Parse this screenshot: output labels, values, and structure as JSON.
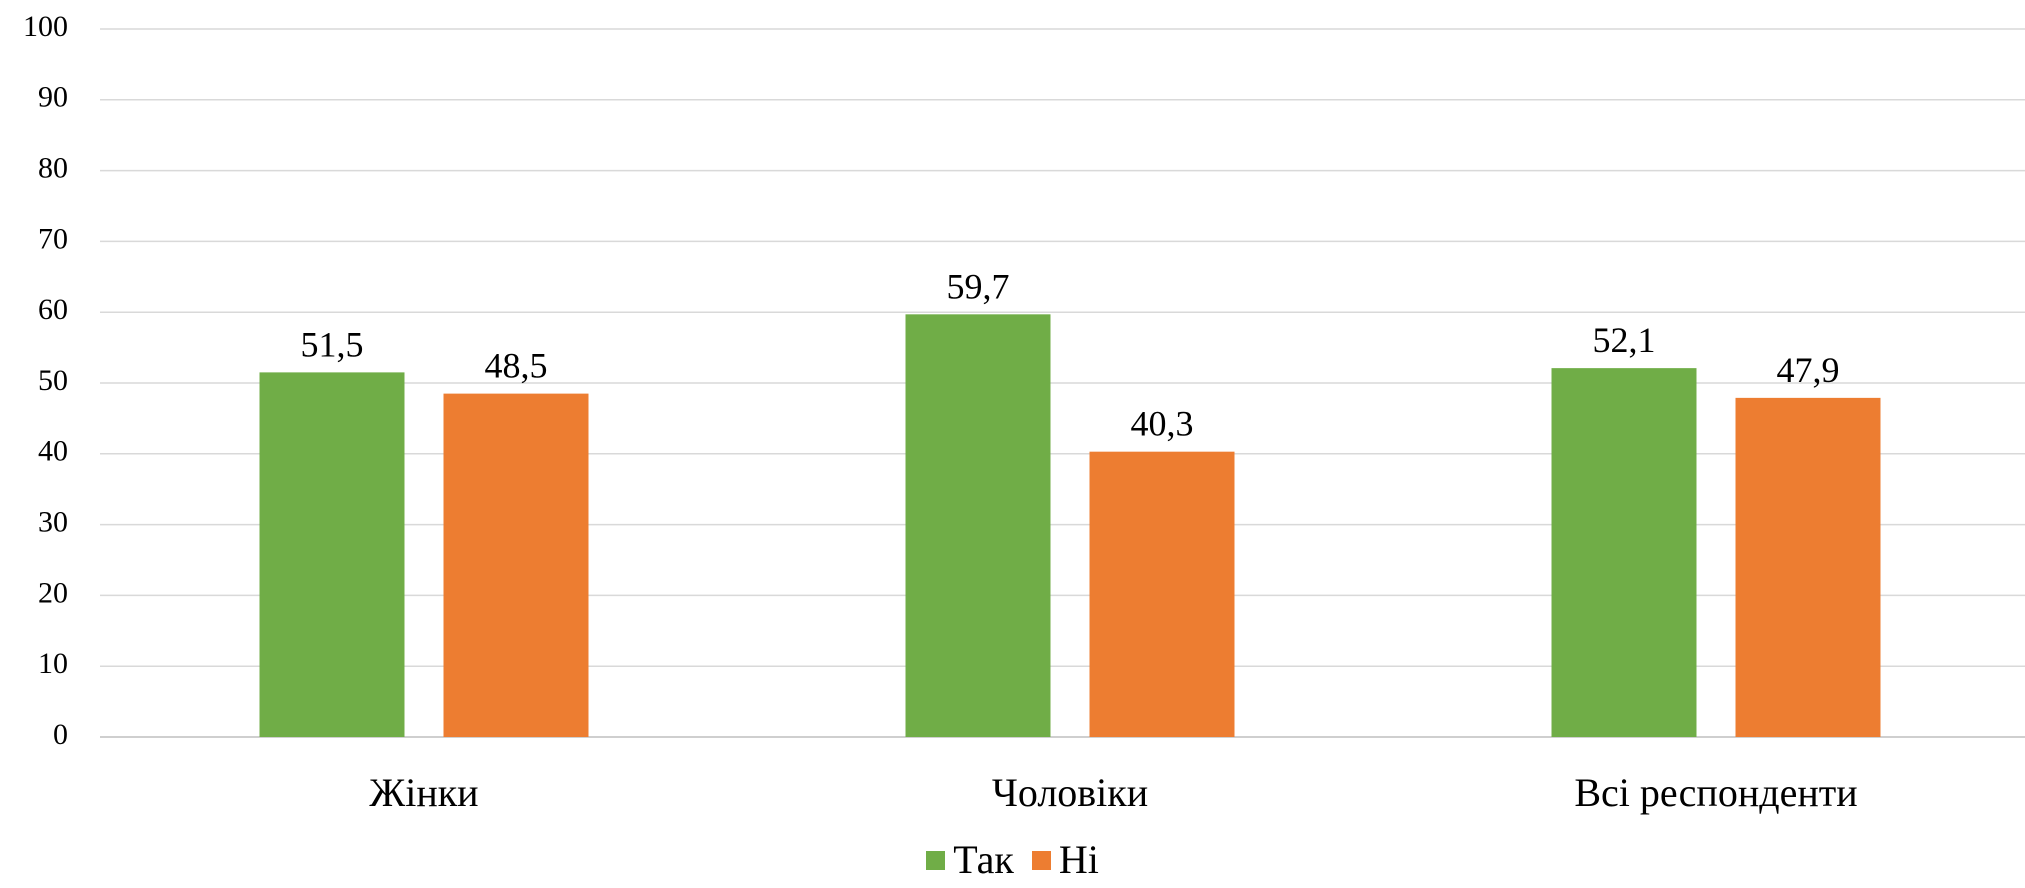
{
  "chart_data": {
    "type": "bar",
    "title": "",
    "xlabel": "",
    "ylabel": "",
    "categories": [
      "Жінки",
      "Чоловіки",
      "Всі респонденти"
    ],
    "series": [
      {
        "name": "Так",
        "values": [
          51.5,
          59.7,
          52.1
        ],
        "labels": [
          "51,5",
          "59,7",
          "52,1"
        ],
        "color": "#70AD47"
      },
      {
        "name": "Ні",
        "values": [
          48.5,
          40.3,
          47.9
        ],
        "labels": [
          "48,5",
          "40,3",
          "47,9"
        ],
        "color": "#ED7D31"
      }
    ],
    "ylim": [
      0,
      100
    ],
    "yticks": [
      0,
      10,
      20,
      30,
      40,
      50,
      60,
      70,
      80,
      90,
      100
    ],
    "grid": true,
    "legend_position": "bottom",
    "gridline_color": "#D9D9D9"
  }
}
